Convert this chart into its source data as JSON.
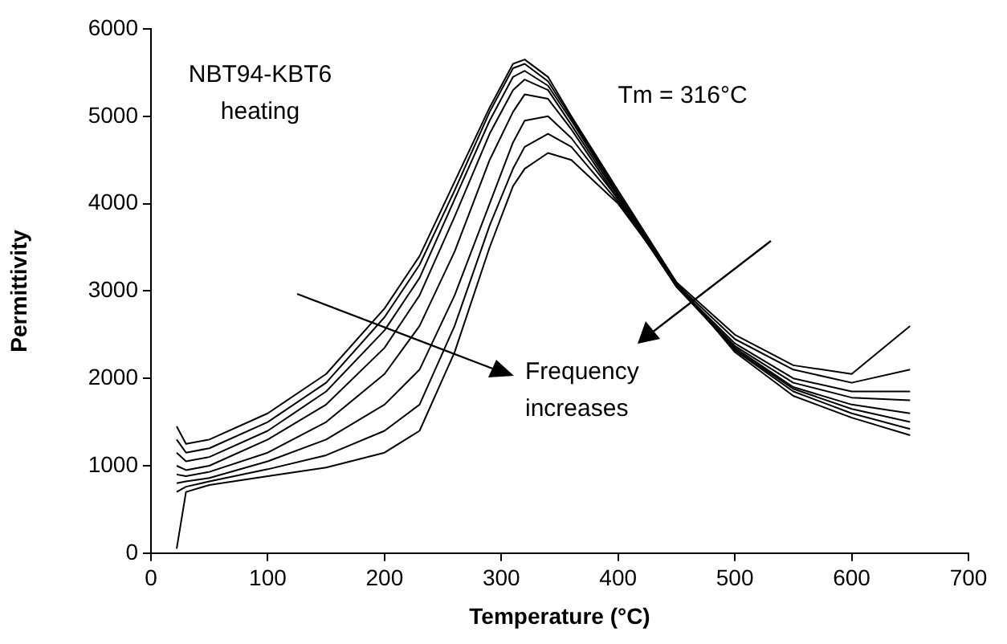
{
  "chart_data": {
    "type": "line",
    "xlabel": "Temperature (°C)",
    "ylabel": "Permittivity",
    "annotations": [
      "NBT94-KBT6\nheating",
      "Tm = 316°C",
      "Frequency\nincreases"
    ],
    "x": [
      22,
      30,
      50,
      100,
      150,
      200,
      230,
      260,
      290,
      310,
      320,
      340,
      360,
      400,
      450,
      500,
      550,
      600,
      650
    ],
    "series": [
      {
        "color": "#000000",
        "values": [
          1450,
          1250,
          1300,
          1600,
          2050,
          2800,
          3400,
          4250,
          5100,
          5600,
          5650,
          5450,
          5000,
          4150,
          3100,
          2500,
          2150,
          2050,
          2600
        ]
      },
      {
        "color": "#000000",
        "values": [
          1300,
          1150,
          1200,
          1500,
          1950,
          2700,
          3300,
          4150,
          5050,
          5550,
          5600,
          5400,
          4980,
          4120,
          3080,
          2450,
          2100,
          1950,
          2100
        ]
      },
      {
        "color": "#000000",
        "values": [
          1150,
          1050,
          1100,
          1400,
          1850,
          2550,
          3150,
          4050,
          4950,
          5450,
          5520,
          5350,
          4950,
          4100,
          3060,
          2400,
          2000,
          1850,
          1850
        ]
      },
      {
        "color": "#000000",
        "values": [
          1000,
          950,
          1000,
          1300,
          1700,
          2350,
          2950,
          3850,
          4800,
          5300,
          5420,
          5300,
          4900,
          4080,
          3050,
          2370,
          1950,
          1780,
          1750
        ]
      },
      {
        "color": "#000000",
        "values": [
          900,
          880,
          930,
          1150,
          1500,
          2050,
          2600,
          3450,
          4500,
          5050,
          5250,
          5200,
          4850,
          4050,
          3050,
          2350,
          1900,
          1700,
          1600
        ]
      },
      {
        "color": "#000000",
        "values": [
          800,
          820,
          860,
          1050,
          1300,
          1700,
          2100,
          2950,
          4000,
          4700,
          4950,
          5000,
          4750,
          4050,
          3050,
          2330,
          1880,
          1650,
          1500
        ]
      },
      {
        "color": "#000000",
        "values": [
          700,
          760,
          820,
          960,
          1120,
          1400,
          1700,
          2600,
          3750,
          4400,
          4650,
          4800,
          4650,
          4020,
          3080,
          2320,
          1850,
          1600,
          1420
        ]
      },
      {
        "color": "#000000",
        "values": [
          50,
          700,
          780,
          880,
          980,
          1150,
          1400,
          2300,
          3500,
          4200,
          4400,
          4580,
          4500,
          4000,
          3100,
          2300,
          1800,
          1550,
          1350
        ]
      }
    ],
    "xlim": [
      0,
      700
    ],
    "xticks": [
      0,
      100,
      200,
      300,
      400,
      500,
      600,
      700
    ],
    "ylim": [
      0,
      6000
    ],
    "yticks": [
      0,
      1000,
      2000,
      3000,
      4000,
      5000,
      6000
    ],
    "grid": false,
    "legend": false,
    "marker": "none",
    "line_style": "solid"
  }
}
